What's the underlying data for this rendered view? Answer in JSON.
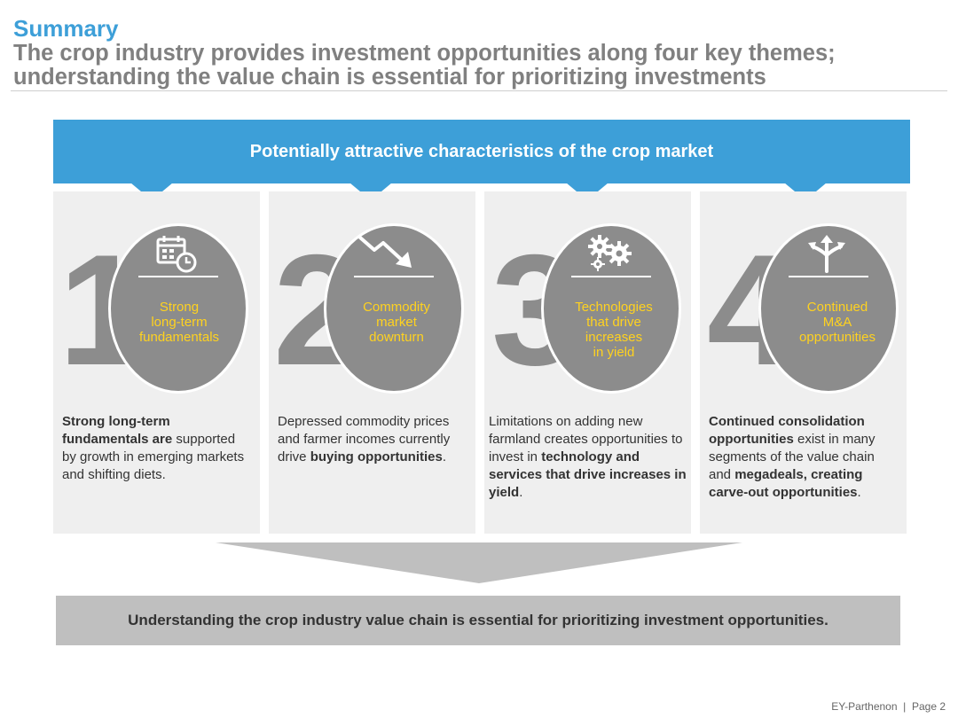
{
  "header": {
    "kicker": "Summary",
    "title_line1": "The crop industry provides investment opportunities along four key themes;",
    "title_line2": "understanding the value chain is essential for prioritizing investments"
  },
  "banner": {
    "text": "Potentially attractive characteristics of the crop market"
  },
  "colors": {
    "accent_blue": "#3d9fd8",
    "circle_gray": "#8c8c8c",
    "label_yellow": "#ffd21f",
    "panel_gray": "#efefef",
    "bar_gray": "#bfbfbf"
  },
  "themes": [
    {
      "number": "1",
      "icon": "calendar-clock-icon",
      "label_lines": [
        "Strong",
        "long-term",
        "fundamentals"
      ],
      "desc_parts": [
        {
          "text": "Strong long-term fundamentals are",
          "bold": true
        },
        {
          "text": " supported by growth in emerging markets and shifting diets.",
          "bold": false
        }
      ]
    },
    {
      "number": "2",
      "icon": "trend-down-arrow-icon",
      "label_lines": [
        "Commodity",
        "market",
        "downturn"
      ],
      "desc_parts": [
        {
          "text": "Depressed commodity prices and farmer incomes currently drive ",
          "bold": false
        },
        {
          "text": "buying opportunities",
          "bold": true
        },
        {
          "text": ".",
          "bold": false
        }
      ]
    },
    {
      "number": "3",
      "icon": "gears-icon",
      "label_lines": [
        "Technologies",
        "that drive",
        "increases",
        "in yield"
      ],
      "desc_parts": [
        {
          "text": "Limitations on adding new farmland creates opportunities to invest in ",
          "bold": false
        },
        {
          "text": "technology and services that drive increases in yield",
          "bold": true
        },
        {
          "text": ".",
          "bold": false
        }
      ]
    },
    {
      "number": "4",
      "icon": "split-arrows-icon",
      "label_lines": [
        "Continued",
        "M&A",
        "opportunities"
      ],
      "desc_parts": [
        {
          "text": "Continued consolidation opportunities",
          "bold": true
        },
        {
          "text": " exist in many segments of the value chain and ",
          "bold": false
        },
        {
          "text": "megadeals, creating carve-out opportunities",
          "bold": true
        },
        {
          "text": ".",
          "bold": false
        }
      ]
    }
  ],
  "conclusion": {
    "text": "Understanding the crop industry value chain is essential for prioritizing investment opportunities."
  },
  "footer": {
    "text": "EY-Parthenon  |  Page 2"
  }
}
